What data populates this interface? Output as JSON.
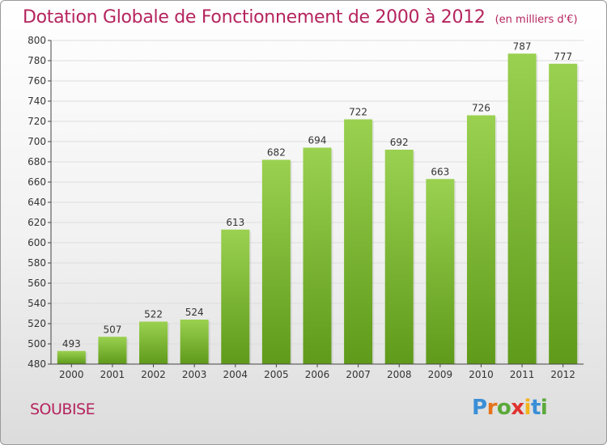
{
  "header": {
    "title": "Dotation Globale de Fonctionnement de 2000 à 2012",
    "unit_note": "(en milliers d'€)"
  },
  "footer": {
    "city": "SOUBISE",
    "logo_text": "Proxiti",
    "logo_colors": [
      "#3a8fd6",
      "#e5731a",
      "#5aa93a",
      "#e0322f",
      "#f2b51f",
      "#3a8fd6",
      "#5aa93a"
    ]
  },
  "colors": {
    "accent": "#b5245e",
    "bar_top": "#9ad150",
    "bar_bottom": "#5f9a1a",
    "axis": "#444444",
    "grid": "#dddddd"
  },
  "chart_data": {
    "type": "bar",
    "title": "Dotation Globale de Fonctionnement de 2000 à 2012",
    "subtitle": "(en milliers d'€)",
    "xlabel": "",
    "ylabel": "",
    "categories": [
      "2000",
      "2001",
      "2002",
      "2003",
      "2004",
      "2005",
      "2006",
      "2007",
      "2008",
      "2009",
      "2010",
      "2011",
      "2012"
    ],
    "values": [
      493,
      507,
      522,
      524,
      613,
      682,
      694,
      722,
      692,
      663,
      726,
      787,
      777
    ],
    "ylim": [
      480,
      800
    ],
    "yticks": [
      480,
      500,
      520,
      540,
      560,
      580,
      600,
      620,
      640,
      660,
      680,
      700,
      720,
      740,
      760,
      780,
      800
    ],
    "grid": true,
    "legend": "none",
    "data_labels": true
  }
}
